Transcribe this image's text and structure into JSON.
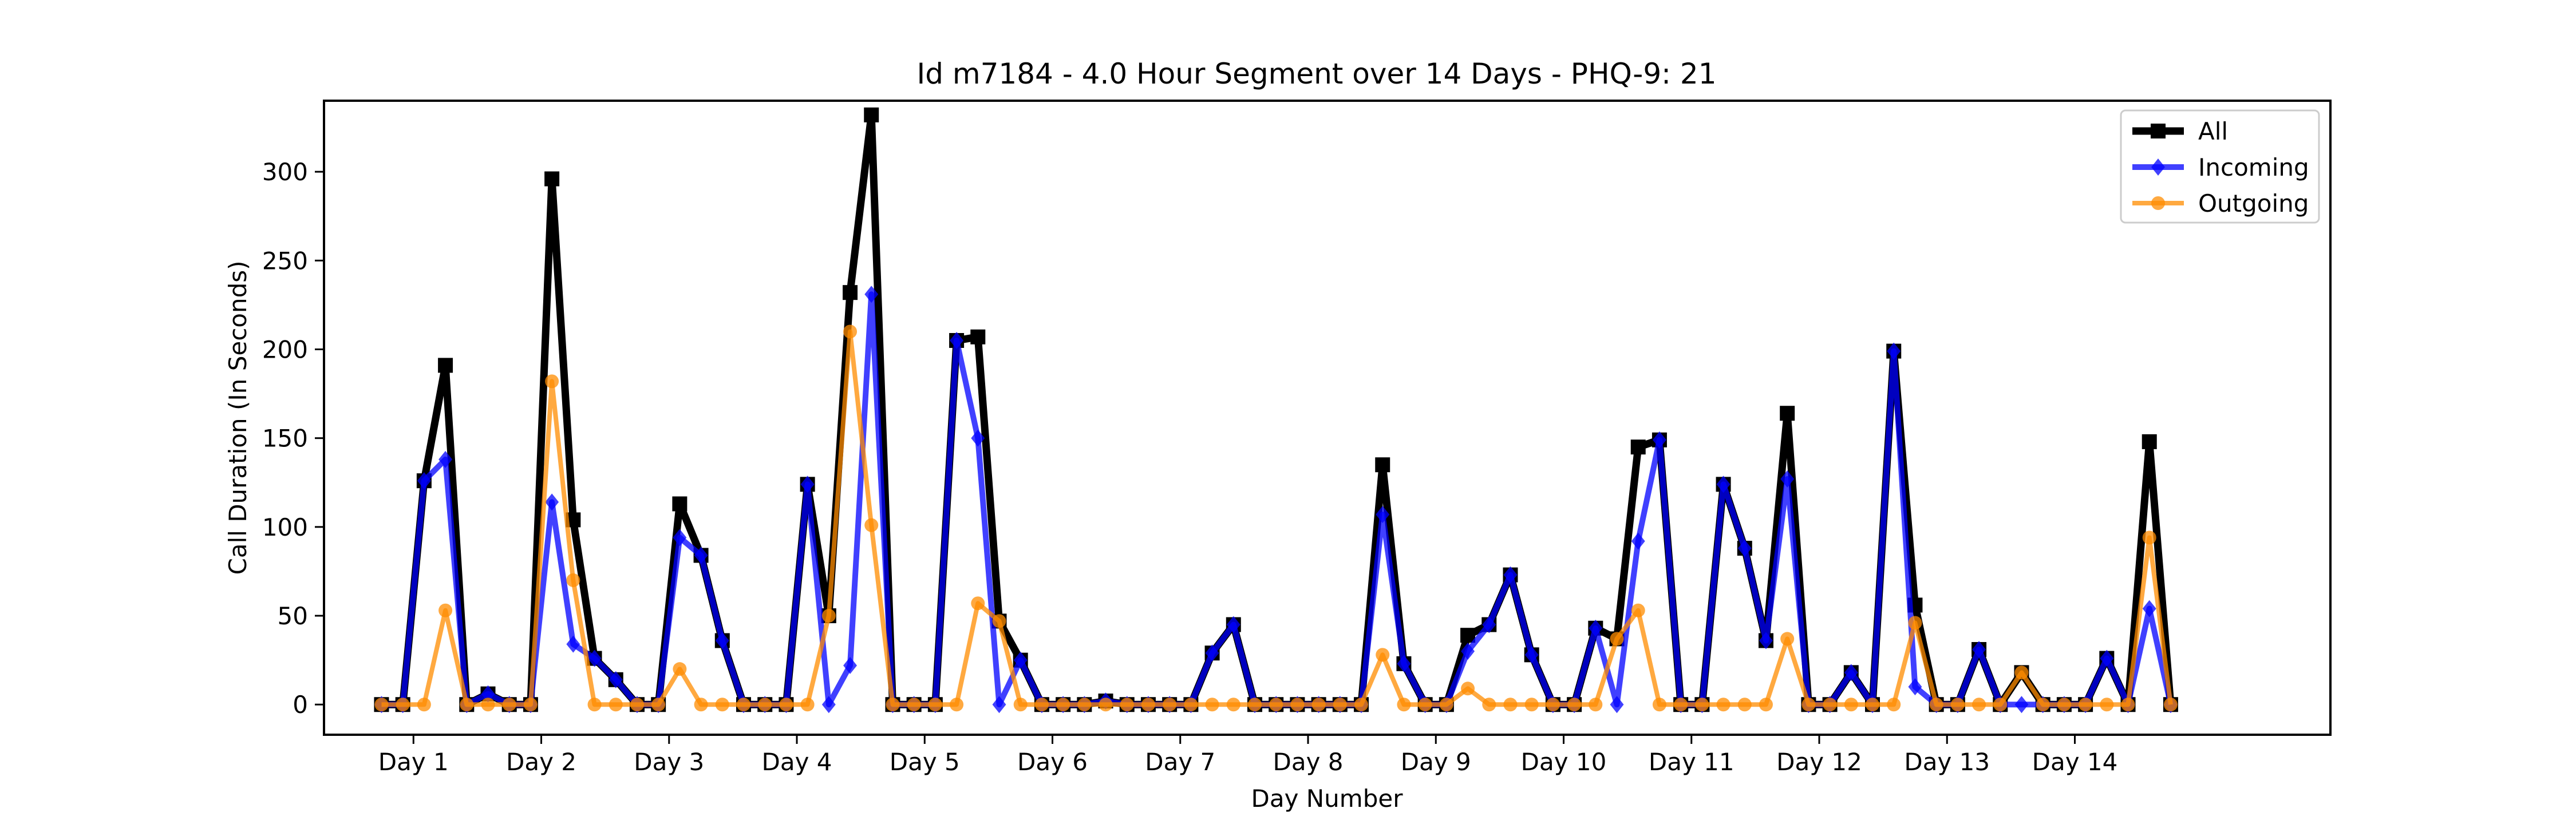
{
  "chart_data": {
    "type": "line",
    "title": "Id m7184 - 4.0 Hour Segment over 14 Days - PHQ-9: 21",
    "xlabel": "Day Number",
    "ylabel": "Call Duration (In Seconds)",
    "xlim": [
      0.3,
      16.0
    ],
    "ylim": [
      -17,
      340
    ],
    "yticks": [
      0,
      50,
      100,
      150,
      200,
      250,
      300
    ],
    "xticks": [
      {
        "label": "Day 1",
        "x": 1
      },
      {
        "label": "Day 2",
        "x": 2
      },
      {
        "label": "Day 3",
        "x": 3
      },
      {
        "label": "Day 4",
        "x": 4
      },
      {
        "label": "Day 5",
        "x": 5
      },
      {
        "label": "Day 6",
        "x": 6
      },
      {
        "label": "Day 7",
        "x": 7
      },
      {
        "label": "Day 8",
        "x": 8
      },
      {
        "label": "Day 9",
        "x": 9
      },
      {
        "label": "Day 10",
        "x": 10
      },
      {
        "label": "Day 11",
        "x": 11
      },
      {
        "label": "Day 12",
        "x": 12
      },
      {
        "label": "Day 13",
        "x": 13
      },
      {
        "label": "Day 14",
        "x": 14
      }
    ],
    "legend_position": "top-right",
    "grid": false,
    "series": [
      {
        "name": "All",
        "color": "#000000",
        "marker": "square",
        "values": [
          0,
          0,
          126,
          191,
          0,
          6,
          0,
          0,
          296,
          104,
          26,
          14,
          0,
          0,
          113,
          84,
          36,
          0,
          0,
          0,
          124,
          50,
          232,
          332,
          0,
          0,
          0,
          205,
          207,
          47,
          25,
          0,
          0,
          0,
          2,
          0,
          0,
          0,
          0,
          29,
          45,
          0,
          0,
          0,
          0,
          0,
          0,
          135,
          23,
          0,
          0,
          39,
          45,
          73,
          28,
          0,
          0,
          43,
          37,
          145,
          149,
          0,
          0,
          124,
          88,
          36,
          164,
          0,
          0,
          18,
          0,
          199,
          56,
          0,
          0,
          31,
          0,
          18,
          0,
          0,
          0,
          26,
          0,
          148,
          0
        ]
      },
      {
        "name": "Incoming",
        "color": "#0000ff",
        "marker": "diamond",
        "values": [
          0,
          0,
          126,
          138,
          0,
          6,
          0,
          0,
          114,
          34,
          26,
          14,
          0,
          0,
          94,
          84,
          36,
          0,
          0,
          0,
          124,
          0,
          22,
          231,
          0,
          0,
          0,
          205,
          150,
          0,
          25,
          0,
          0,
          0,
          2,
          0,
          0,
          0,
          0,
          29,
          45,
          0,
          0,
          0,
          0,
          0,
          0,
          107,
          23,
          0,
          0,
          30,
          45,
          73,
          28,
          0,
          0,
          43,
          0,
          92,
          149,
          0,
          0,
          124,
          88,
          36,
          127,
          0,
          0,
          18,
          0,
          199,
          10,
          0,
          0,
          31,
          0,
          0,
          0,
          0,
          0,
          26,
          0,
          54,
          0
        ]
      },
      {
        "name": "Outgoing",
        "color": "#ff8c00",
        "marker": "circle",
        "values": [
          0,
          0,
          0,
          53,
          0,
          0,
          0,
          0,
          182,
          70,
          0,
          0,
          0,
          0,
          20,
          0,
          0,
          0,
          0,
          0,
          0,
          50,
          210,
          101,
          0,
          0,
          0,
          0,
          57,
          47,
          0,
          0,
          0,
          0,
          0,
          0,
          0,
          0,
          0,
          0,
          0,
          0,
          0,
          0,
          0,
          0,
          0,
          28,
          0,
          0,
          0,
          9,
          0,
          0,
          0,
          0,
          0,
          0,
          37,
          53,
          0,
          0,
          0,
          0,
          0,
          0,
          37,
          0,
          0,
          0,
          0,
          0,
          46,
          0,
          0,
          0,
          0,
          18,
          0,
          0,
          0,
          0,
          0,
          94,
          0
        ]
      }
    ]
  }
}
